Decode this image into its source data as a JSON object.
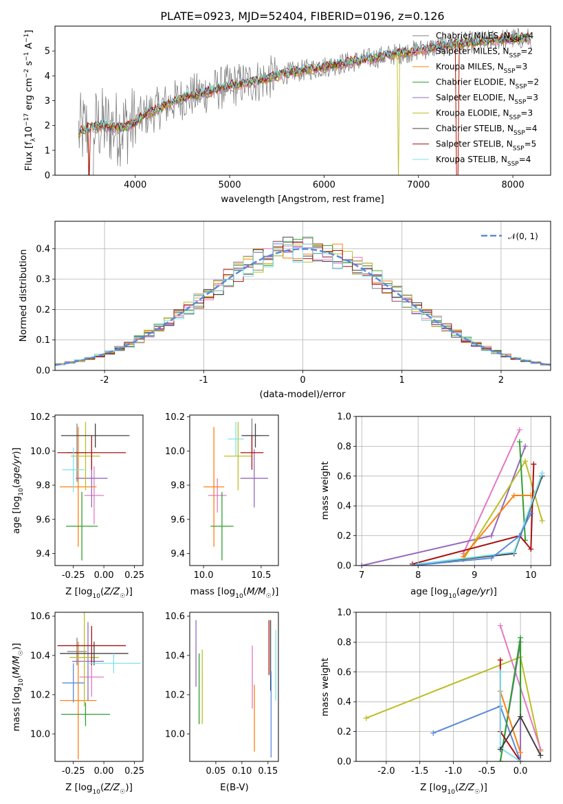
{
  "title": "PLATE=0923, MJD=52404, FIBERID=0196, z=0.126",
  "colors": {
    "Chabrier MILES": "#7f7f7f",
    "Salpeter MILES": "#e377c2",
    "Kroupa MILES": "#ff7f0e",
    "Chabrier ELODIE": "#2ca02c",
    "Salpeter ELODIE": "#9467bd",
    "Kroupa ELODIE": "#bcbd22",
    "Chabrier STELIB": "#404040",
    "Salpeter STELIB": "#aa1010",
    "Kroupa STELIB": "#7ee0ee",
    "normal": "#5a8ad8"
  },
  "chart_data": [
    {
      "type": "line",
      "name": "spectrum",
      "xlabel": "wavelength [Angstrom, rest frame]",
      "ylabel": "Flux [f_λ 10^-17 erg cm^-2 s^-1 A^-1]",
      "xlim": [
        3150,
        8400
      ],
      "ylim": [
        0,
        6.0
      ],
      "xticks": [
        4000,
        5000,
        6000,
        7000,
        8000
      ],
      "yticks": [
        0,
        1,
        2,
        3,
        4,
        5
      ],
      "legend_loc": "upper right",
      "legend": [
        {
          "model": "Chabrier MILES",
          "nssp": "4"
        },
        {
          "model": "Salpeter MILES",
          "nssp": "2"
        },
        {
          "model": "Kroupa MILES",
          "nssp": "3"
        },
        {
          "model": "Chabrier ELODIE",
          "nssp": "2"
        },
        {
          "model": "Salpeter ELODIE",
          "nssp": "3"
        },
        {
          "model": "Kroupa ELODIE",
          "nssp": "3"
        },
        {
          "model": "Chabrier STELIB",
          "nssp": "4"
        },
        {
          "model": "Salpeter STELIB",
          "nssp": "5"
        },
        {
          "model": "Kroupa STELIB",
          "nssp": "4"
        }
      ],
      "continuum": [
        [
          3400,
          1.7
        ],
        [
          3500,
          1.9
        ],
        [
          3650,
          2.0
        ],
        [
          3800,
          1.9
        ],
        [
          3950,
          2.0
        ],
        [
          4100,
          2.4
        ],
        [
          4300,
          2.8
        ],
        [
          4500,
          3.1
        ],
        [
          4700,
          3.3
        ],
        [
          5000,
          3.6
        ],
        [
          5300,
          3.8
        ],
        [
          5600,
          4.1
        ],
        [
          5900,
          4.3
        ],
        [
          6200,
          4.5
        ],
        [
          6500,
          4.7
        ],
        [
          6800,
          4.9
        ],
        [
          7100,
          5.1
        ],
        [
          7400,
          5.3
        ],
        [
          7700,
          5.4
        ],
        [
          8000,
          5.5
        ],
        [
          8200,
          5.5
        ]
      ]
    },
    {
      "type": "area",
      "name": "residual histogram",
      "xlabel": "(data-model)/error",
      "ylabel": "Normed distribution",
      "xlim": [
        -2.5,
        2.5
      ],
      "ylim": [
        0,
        0.49
      ],
      "xticks": [
        -2,
        -1,
        0,
        1,
        2
      ],
      "yticks": [
        0.0,
        0.1,
        0.2,
        0.3,
        0.4
      ],
      "legend": "N(0,1)",
      "grid": true
    },
    {
      "type": "scatter",
      "name": "age vs Z",
      "xlabel": "Z [log10(Z/Z☉)]",
      "ylabel": "age [log10(age/yr)]",
      "xlim": [
        -0.4,
        0.32
      ],
      "ylim": [
        9.33,
        10.21
      ],
      "xticks": [
        -0.25,
        0.0,
        0.25
      ],
      "yticks": [
        9.4,
        9.6,
        9.8,
        10.0,
        10.2
      ],
      "points": [
        {
          "model": "Chabrier MILES",
          "x": -0.22,
          "xerr": 0.08,
          "y": 9.99,
          "yerr": 0.17
        },
        {
          "model": "Salpeter MILES",
          "x": -0.08,
          "xerr": 0.08,
          "y": 9.74,
          "yerr": 0.17
        },
        {
          "model": "Kroupa MILES",
          "x": -0.21,
          "xerr": 0.15,
          "y": 9.79,
          "yerr": 0.35
        },
        {
          "model": "Chabrier ELODIE",
          "x": -0.18,
          "xerr": 0.13,
          "y": 9.56,
          "yerr": 0.2
        },
        {
          "model": "Salpeter ELODIE",
          "x": -0.1,
          "xerr": 0.13,
          "y": 9.84,
          "yerr": 0.17
        },
        {
          "model": "Kroupa ELODIE",
          "x": -0.15,
          "xerr": 0.12,
          "y": 9.97,
          "yerr": 0.2
        },
        {
          "model": "Chabrier STELIB",
          "x": -0.07,
          "xerr": 0.28,
          "y": 10.09,
          "yerr": 0.07
        },
        {
          "model": "Salpeter STELIB",
          "x": -0.1,
          "xerr": 0.28,
          "y": 9.99,
          "yerr": 0.1
        },
        {
          "model": "Kroupa STELIB",
          "x": -0.25,
          "xerr": 0.09,
          "y": 9.89,
          "yerr": 0.13
        }
      ]
    },
    {
      "type": "scatter",
      "name": "age vs mass",
      "xlabel": "mass [log10(M/M☉)]",
      "ylabel": "",
      "xlim": [
        9.88,
        10.65
      ],
      "ylim": [
        9.33,
        10.21
      ],
      "xticks": [
        10.0,
        10.5
      ],
      "yticks": [
        9.4,
        9.6,
        9.8,
        10.0,
        10.2
      ],
      "points": [
        {
          "model": "Chabrier MILES",
          "x": 10.42,
          "xerr": 0.07,
          "y": 10.09,
          "yerr": 0.1
        },
        {
          "model": "Salpeter MILES",
          "x": 10.12,
          "xerr": 0.08,
          "y": 9.74,
          "yerr": 0.1
        },
        {
          "model": "Kroupa MILES",
          "x": 10.09,
          "xerr": 0.09,
          "y": 9.79,
          "yerr": 0.35
        },
        {
          "model": "Chabrier ELODIE",
          "x": 10.16,
          "xerr": 0.1,
          "y": 9.56,
          "yerr": 0.2
        },
        {
          "model": "Salpeter ELODIE",
          "x": 10.44,
          "xerr": 0.12,
          "y": 9.84,
          "yerr": 0.17
        },
        {
          "model": "Kroupa ELODIE",
          "x": 10.3,
          "xerr": 0.12,
          "y": 9.97,
          "yerr": 0.2
        },
        {
          "model": "Chabrier STELIB",
          "x": 10.45,
          "xerr": 0.12,
          "y": 10.09,
          "yerr": 0.07
        },
        {
          "model": "Salpeter STELIB",
          "x": 10.42,
          "xerr": 0.1,
          "y": 9.99,
          "yerr": 0.1
        },
        {
          "model": "Kroupa STELIB",
          "x": 10.28,
          "xerr": 0.07,
          "y": 10.07,
          "yerr": 0.1
        }
      ]
    },
    {
      "type": "line",
      "name": "mass weight vs age",
      "xlabel": "age [log10(age/yr)]",
      "ylabel": "mass weight",
      "xlim": [
        6.9,
        10.35
      ],
      "ylim": [
        0,
        1.0
      ],
      "xticks": [
        7,
        8,
        9,
        10
      ],
      "yticks": [
        0.0,
        0.2,
        0.4,
        0.6,
        0.8,
        1.0
      ],
      "grid": true,
      "series": [
        {
          "model": "Salpeter MILES",
          "points": [
            [
              8.8,
              0.08
            ],
            [
              9.8,
              0.91
            ]
          ]
        },
        {
          "model": "Salpeter ELODIE",
          "points": [
            [
              7.0,
              0.0
            ],
            [
              9.3,
              0.2
            ],
            [
              9.9,
              0.8
            ]
          ]
        },
        {
          "model": "Kroupa ELODIE",
          "points": [
            [
              8.8,
              0.04
            ],
            [
              9.9,
              0.7
            ],
            [
              10.2,
              0.3
            ]
          ]
        },
        {
          "model": "Chabrier ELODIE",
          "points": [
            [
              9.8,
              0.83
            ],
            [
              9.9,
              0.17
            ]
          ]
        },
        {
          "model": "Kroupa MILES",
          "points": [
            [
              8.8,
              0.06
            ],
            [
              9.7,
              0.47
            ],
            [
              10.0,
              0.47
            ]
          ]
        },
        {
          "model": "Salpeter STELIB",
          "points": [
            [
              7.9,
              0.01
            ],
            [
              9.8,
              0.2
            ],
            [
              10.0,
              0.11
            ],
            [
              10.05,
              0.68
            ]
          ]
        },
        {
          "model": "Chabrier STELIB",
          "points": [
            [
              8.0,
              0.01
            ],
            [
              9.7,
              0.08
            ],
            [
              10.2,
              0.6
            ]
          ]
        },
        {
          "model": "Kroupa STELIB",
          "points": [
            [
              8.0,
              0.01
            ],
            [
              9.7,
              0.09
            ],
            [
              10.2,
              0.62
            ]
          ]
        },
        {
          "model": "normal",
          "points": [
            [
              7.9,
              0.0
            ],
            [
              9.3,
              0.05
            ],
            [
              9.8,
              0.2
            ],
            [
              10.0,
              0.35
            ]
          ]
        }
      ]
    },
    {
      "type": "scatter",
      "name": "mass vs Z",
      "xlabel": "Z [log10(Z/Z☉)]",
      "ylabel": "mass [log10(M/M☉)]",
      "xlim": [
        -0.4,
        0.32
      ],
      "ylim": [
        9.86,
        10.62
      ],
      "xticks": [
        -0.25,
        0.0,
        0.25
      ],
      "yticks": [
        10.0,
        10.2,
        10.4,
        10.6
      ],
      "points": [
        {
          "model": "Chabrier MILES",
          "x": -0.22,
          "xerr": 0.08,
          "y": 10.42,
          "yerr": 0.07
        },
        {
          "model": "Salpeter MILES",
          "x": -0.1,
          "xerr": 0.1,
          "y": 10.29,
          "yerr": 0.1
        },
        {
          "model": "Kroupa MILES",
          "x": -0.21,
          "xerr": 0.15,
          "y": 10.17,
          "yerr": 0.3
        },
        {
          "model": "Chabrier ELODIE",
          "x": -0.15,
          "xerr": 0.2,
          "y": 10.1,
          "yerr": 0.06
        },
        {
          "model": "Salpeter ELODIE",
          "x": -0.13,
          "xerr": 0.13,
          "y": 10.37,
          "yerr": 0.2
        },
        {
          "model": "Kroupa ELODIE",
          "x": -0.16,
          "xerr": 0.12,
          "y": 10.39,
          "yerr": 0.25
        },
        {
          "model": "Chabrier STELIB",
          "x": -0.08,
          "xerr": 0.28,
          "y": 10.41,
          "yerr": 0.06
        },
        {
          "model": "Salpeter STELIB",
          "x": -0.1,
          "xerr": 0.28,
          "y": 10.45,
          "yerr": 0.1
        },
        {
          "model": "Kroupa STELIB",
          "x": 0.08,
          "xerr": 0.22,
          "y": 10.36,
          "yerr": 0.05
        },
        {
          "model": "normal",
          "x": -0.25,
          "xerr": 0.09,
          "y": 10.26,
          "yerr": 0.1
        }
      ]
    },
    {
      "type": "scatter",
      "name": "mass vs E(B-V)",
      "xlabel": "E(B-V)",
      "ylabel": "",
      "xlim": [
        0.0,
        0.17
      ],
      "ylim": [
        9.86,
        10.62
      ],
      "xticks": [
        0.05,
        0.1,
        0.15
      ],
      "yticks": [
        10.0,
        10.2,
        10.4,
        10.6
      ],
      "points": [
        {
          "model": "Salpeter ELODIE",
          "x": 0.012,
          "y": 10.41,
          "yerr": 0.17
        },
        {
          "model": "Chabrier ELODIE",
          "x": 0.018,
          "y": 10.23,
          "yerr": 0.18
        },
        {
          "model": "Kroupa ELODIE",
          "x": 0.024,
          "y": 10.24,
          "yerr": 0.19
        },
        {
          "model": "Salpeter MILES",
          "x": 0.12,
          "y": 10.29,
          "yerr": 0.16
        },
        {
          "model": "Kroupa MILES",
          "x": 0.124,
          "y": 10.08,
          "yerr": 0.17
        },
        {
          "model": "Salpeter STELIB",
          "x": 0.152,
          "y": 10.44,
          "yerr": 0.14
        },
        {
          "model": "Chabrier STELIB",
          "x": 0.155,
          "y": 10.4,
          "yerr": 0.18
        },
        {
          "model": "normal",
          "x": 0.156,
          "y": 10.1,
          "yerr": 0.22
        },
        {
          "model": "Kroupa STELIB",
          "x": 0.165,
          "y": 10.35,
          "yerr": 0.18
        }
      ]
    },
    {
      "type": "line",
      "name": "mass weight vs Z",
      "xlabel": "Z [log10(Z/Z☉)]",
      "ylabel": "mass weight",
      "xlim": [
        -2.45,
        0.45
      ],
      "ylim": [
        0,
        1.0
      ],
      "xticks": [
        -2.0,
        -1.5,
        -1.0,
        -0.5,
        0.0
      ],
      "yticks": [
        0.0,
        0.2,
        0.4,
        0.6,
        0.8,
        1.0
      ],
      "grid": true,
      "series": [
        {
          "model": "Kroupa ELODIE",
          "points": [
            [
              -2.3,
              0.29
            ],
            [
              0.0,
              0.7
            ],
            [
              0.3,
              0.07
            ]
          ]
        },
        {
          "model": "normal",
          "points": [
            [
              -1.3,
              0.19
            ],
            [
              -0.3,
              0.37
            ],
            [
              0.0,
              0.0
            ]
          ]
        },
        {
          "model": "Salpeter MILES",
          "points": [
            [
              -0.3,
              0.91
            ],
            [
              0.3,
              0.08
            ]
          ]
        },
        {
          "model": "Salpeter ELODIE",
          "points": [
            [
              -0.3,
              0.0
            ],
            [
              0.0,
              0.8
            ],
            [
              0.0,
              0.0
            ]
          ]
        },
        {
          "model": "Chabrier ELODIE",
          "points": [
            [
              -0.3,
              0.0
            ],
            [
              0.0,
              0.83
            ],
            [
              0.0,
              0.3
            ]
          ]
        },
        {
          "model": "Kroupa MILES",
          "points": [
            [
              -0.3,
              0.47
            ],
            [
              0.0,
              0.06
            ]
          ]
        },
        {
          "model": "Salpeter STELIB",
          "points": [
            [
              -0.3,
              0.68
            ],
            [
              -0.3,
              0.2
            ],
            [
              0.0,
              0.0
            ]
          ]
        },
        {
          "model": "Kroupa STELIB",
          "points": [
            [
              -0.3,
              0.6
            ],
            [
              -0.3,
              0.09
            ],
            [
              0.0,
              0.0
            ]
          ]
        },
        {
          "model": "Chabrier STELIB",
          "points": [
            [
              -0.3,
              0.08
            ],
            [
              0.0,
              0.3
            ],
            [
              0.3,
              0.04
            ]
          ]
        }
      ]
    }
  ]
}
